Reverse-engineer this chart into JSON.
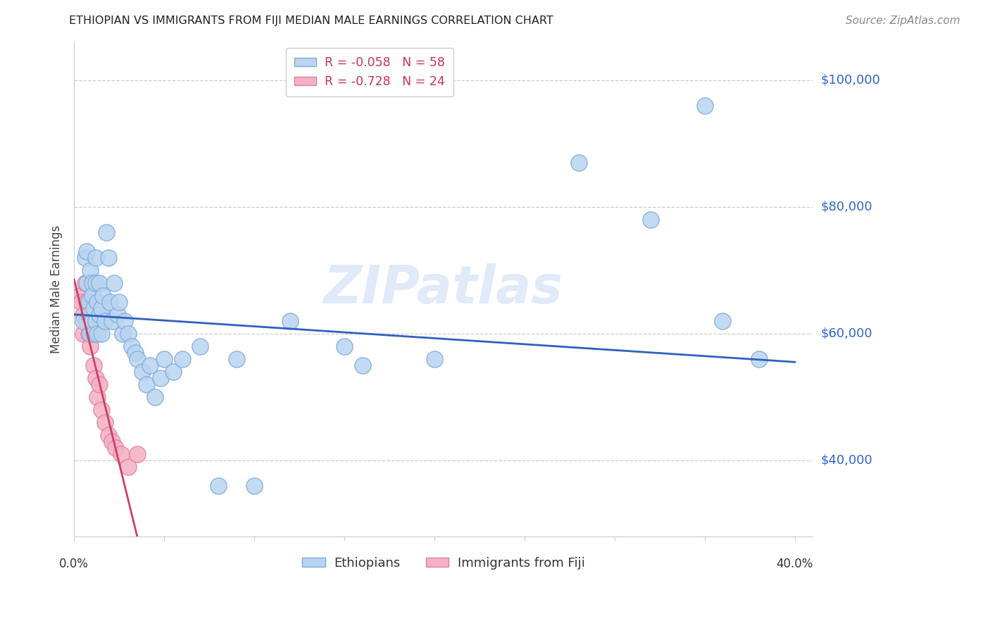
{
  "title": "ETHIOPIAN VS IMMIGRANTS FROM FIJI MEDIAN MALE EARNINGS CORRELATION CHART",
  "source": "Source: ZipAtlas.com",
  "ylabel": "Median Male Earnings",
  "watermark": "ZIPatlas",
  "y_tick_values": [
    40000,
    60000,
    80000,
    100000
  ],
  "y_tick_labels": [
    "$40,000",
    "$60,000",
    "$80,000",
    "$100,000"
  ],
  "legend_entries": [
    {
      "label": "R = -0.058   N = 58",
      "color": "#b8d4f0"
    },
    {
      "label": "R = -0.728   N = 24",
      "color": "#f4b0c4"
    }
  ],
  "legend_bottom": [
    {
      "label": "Ethiopians",
      "color": "#b8d4f0"
    },
    {
      "label": "Immigrants from Fiji",
      "color": "#f4b0c4"
    }
  ],
  "blue_line_color": "#3060c0",
  "pink_line_color": "#d04060",
  "grid_color": "#cccccc",
  "ethiopians_color": "#b8d4f0",
  "fiji_color": "#f4b0c4",
  "ethiopians_edge": "#80aad8",
  "fiji_edge": "#e080a0",
  "ethiopians_x": [
    0.005,
    0.006,
    0.007,
    0.007,
    0.008,
    0.008,
    0.009,
    0.009,
    0.01,
    0.01,
    0.01,
    0.011,
    0.011,
    0.012,
    0.012,
    0.012,
    0.013,
    0.013,
    0.014,
    0.014,
    0.015,
    0.015,
    0.016,
    0.017,
    0.018,
    0.019,
    0.02,
    0.021,
    0.022,
    0.024,
    0.025,
    0.027,
    0.028,
    0.03,
    0.032,
    0.034,
    0.035,
    0.038,
    0.04,
    0.042,
    0.045,
    0.048,
    0.05,
    0.055,
    0.06,
    0.07,
    0.08,
    0.09,
    0.1,
    0.12,
    0.15,
    0.16,
    0.2,
    0.28,
    0.32,
    0.35,
    0.36,
    0.38
  ],
  "ethiopians_y": [
    62000,
    72000,
    68000,
    73000,
    65000,
    63000,
    70000,
    60000,
    68000,
    66000,
    62000,
    64000,
    60000,
    72000,
    68000,
    62000,
    65000,
    60000,
    68000,
    63000,
    64000,
    60000,
    66000,
    62000,
    76000,
    72000,
    65000,
    62000,
    68000,
    63000,
    65000,
    60000,
    62000,
    60000,
    58000,
    57000,
    56000,
    54000,
    52000,
    55000,
    50000,
    53000,
    56000,
    54000,
    56000,
    58000,
    36000,
    56000,
    36000,
    62000,
    58000,
    55000,
    56000,
    87000,
    78000,
    96000,
    62000,
    56000
  ],
  "fiji_x": [
    0.003,
    0.004,
    0.005,
    0.005,
    0.006,
    0.007,
    0.007,
    0.008,
    0.008,
    0.009,
    0.009,
    0.01,
    0.011,
    0.012,
    0.013,
    0.014,
    0.015,
    0.017,
    0.019,
    0.021,
    0.023,
    0.026,
    0.03,
    0.035
  ],
  "fiji_y": [
    66000,
    65000,
    63000,
    60000,
    68000,
    65000,
    62000,
    63000,
    60000,
    58000,
    62000,
    60000,
    55000,
    53000,
    50000,
    52000,
    48000,
    46000,
    44000,
    43000,
    42000,
    41000,
    39000,
    41000
  ],
  "blue_line_x0": 0.0,
  "blue_line_x1": 0.4,
  "blue_line_y0": 63000,
  "blue_line_y1": 55500,
  "pink_line_x0": 0.0,
  "pink_line_x1": 0.035,
  "pink_line_y0": 68500,
  "pink_line_y1": 28000,
  "xlim": [
    0.0,
    0.41
  ],
  "ylim": [
    28000,
    106000
  ]
}
